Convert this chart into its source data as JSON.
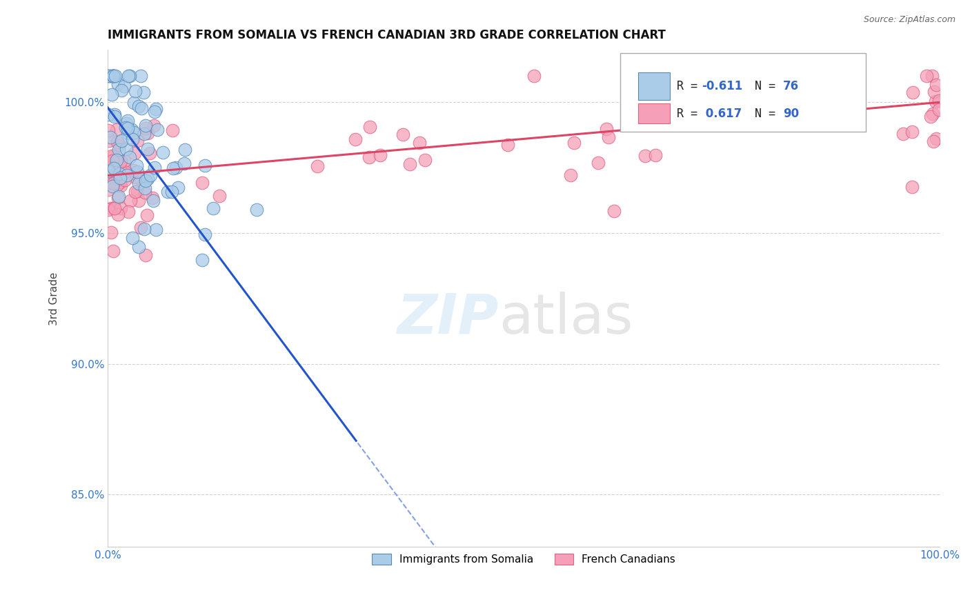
{
  "title": "IMMIGRANTS FROM SOMALIA VS FRENCH CANADIAN 3RD GRADE CORRELATION CHART",
  "source": "Source: ZipAtlas.com",
  "ylabel": "3rd Grade",
  "xlim": [
    0.0,
    100.0
  ],
  "ylim": [
    83.0,
    102.0
  ],
  "yticks": [
    85.0,
    90.0,
    95.0,
    100.0
  ],
  "ytick_labels": [
    "85.0%",
    "90.0%",
    "95.0%",
    "100.0%"
  ],
  "xtick_labels": [
    "0.0%",
    "100.0%"
  ],
  "legend_r_somalia": "-0.611",
  "legend_n_somalia": "76",
  "legend_r_french": "0.617",
  "legend_n_french": "90",
  "somalia_color": "#aacce8",
  "somalia_color_dark": "#5588bb",
  "french_color": "#f5a0b8",
  "french_color_dark": "#e06080",
  "somalia_line_color": "#2255cc",
  "french_line_color": "#dd4466",
  "background_color": "#ffffff",
  "grid_color": "#cccccc",
  "somalia_trend_x0": 0.0,
  "somalia_trend_y0": 99.8,
  "somalia_trend_x1": 30.0,
  "somalia_trend_y1": 87.0,
  "somalia_solid_end": 30.0,
  "somalia_dash_end": 46.0,
  "french_trend_x0": 0.0,
  "french_trend_y0": 97.2,
  "french_trend_x1": 100.0,
  "french_trend_y1": 100.0
}
